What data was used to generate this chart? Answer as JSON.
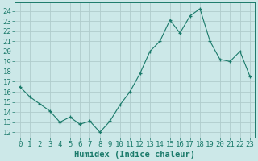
{
  "x": [
    0,
    1,
    2,
    3,
    4,
    5,
    6,
    7,
    8,
    9,
    10,
    11,
    12,
    13,
    14,
    15,
    16,
    17,
    18,
    19,
    20,
    21,
    22,
    23
  ],
  "y": [
    16.5,
    15.5,
    14.8,
    14.1,
    13.0,
    13.5,
    12.8,
    13.1,
    12.0,
    13.1,
    14.7,
    16.0,
    17.8,
    20.0,
    21.0,
    23.1,
    21.8,
    23.5,
    24.2,
    21.0,
    19.2,
    19.0,
    20.0,
    17.5
  ],
  "line_color": "#1a7a6a",
  "bg_color": "#cce8e8",
  "grid_color": "#b0cccc",
  "xlabel": "Humidex (Indice chaleur)",
  "ylabel_ticks": [
    12,
    13,
    14,
    15,
    16,
    17,
    18,
    19,
    20,
    21,
    22,
    23,
    24
  ],
  "xlim": [
    -0.5,
    23.5
  ],
  "ylim": [
    11.5,
    24.8
  ],
  "xlabel_fontsize": 7.5,
  "tick_fontsize": 6.5
}
